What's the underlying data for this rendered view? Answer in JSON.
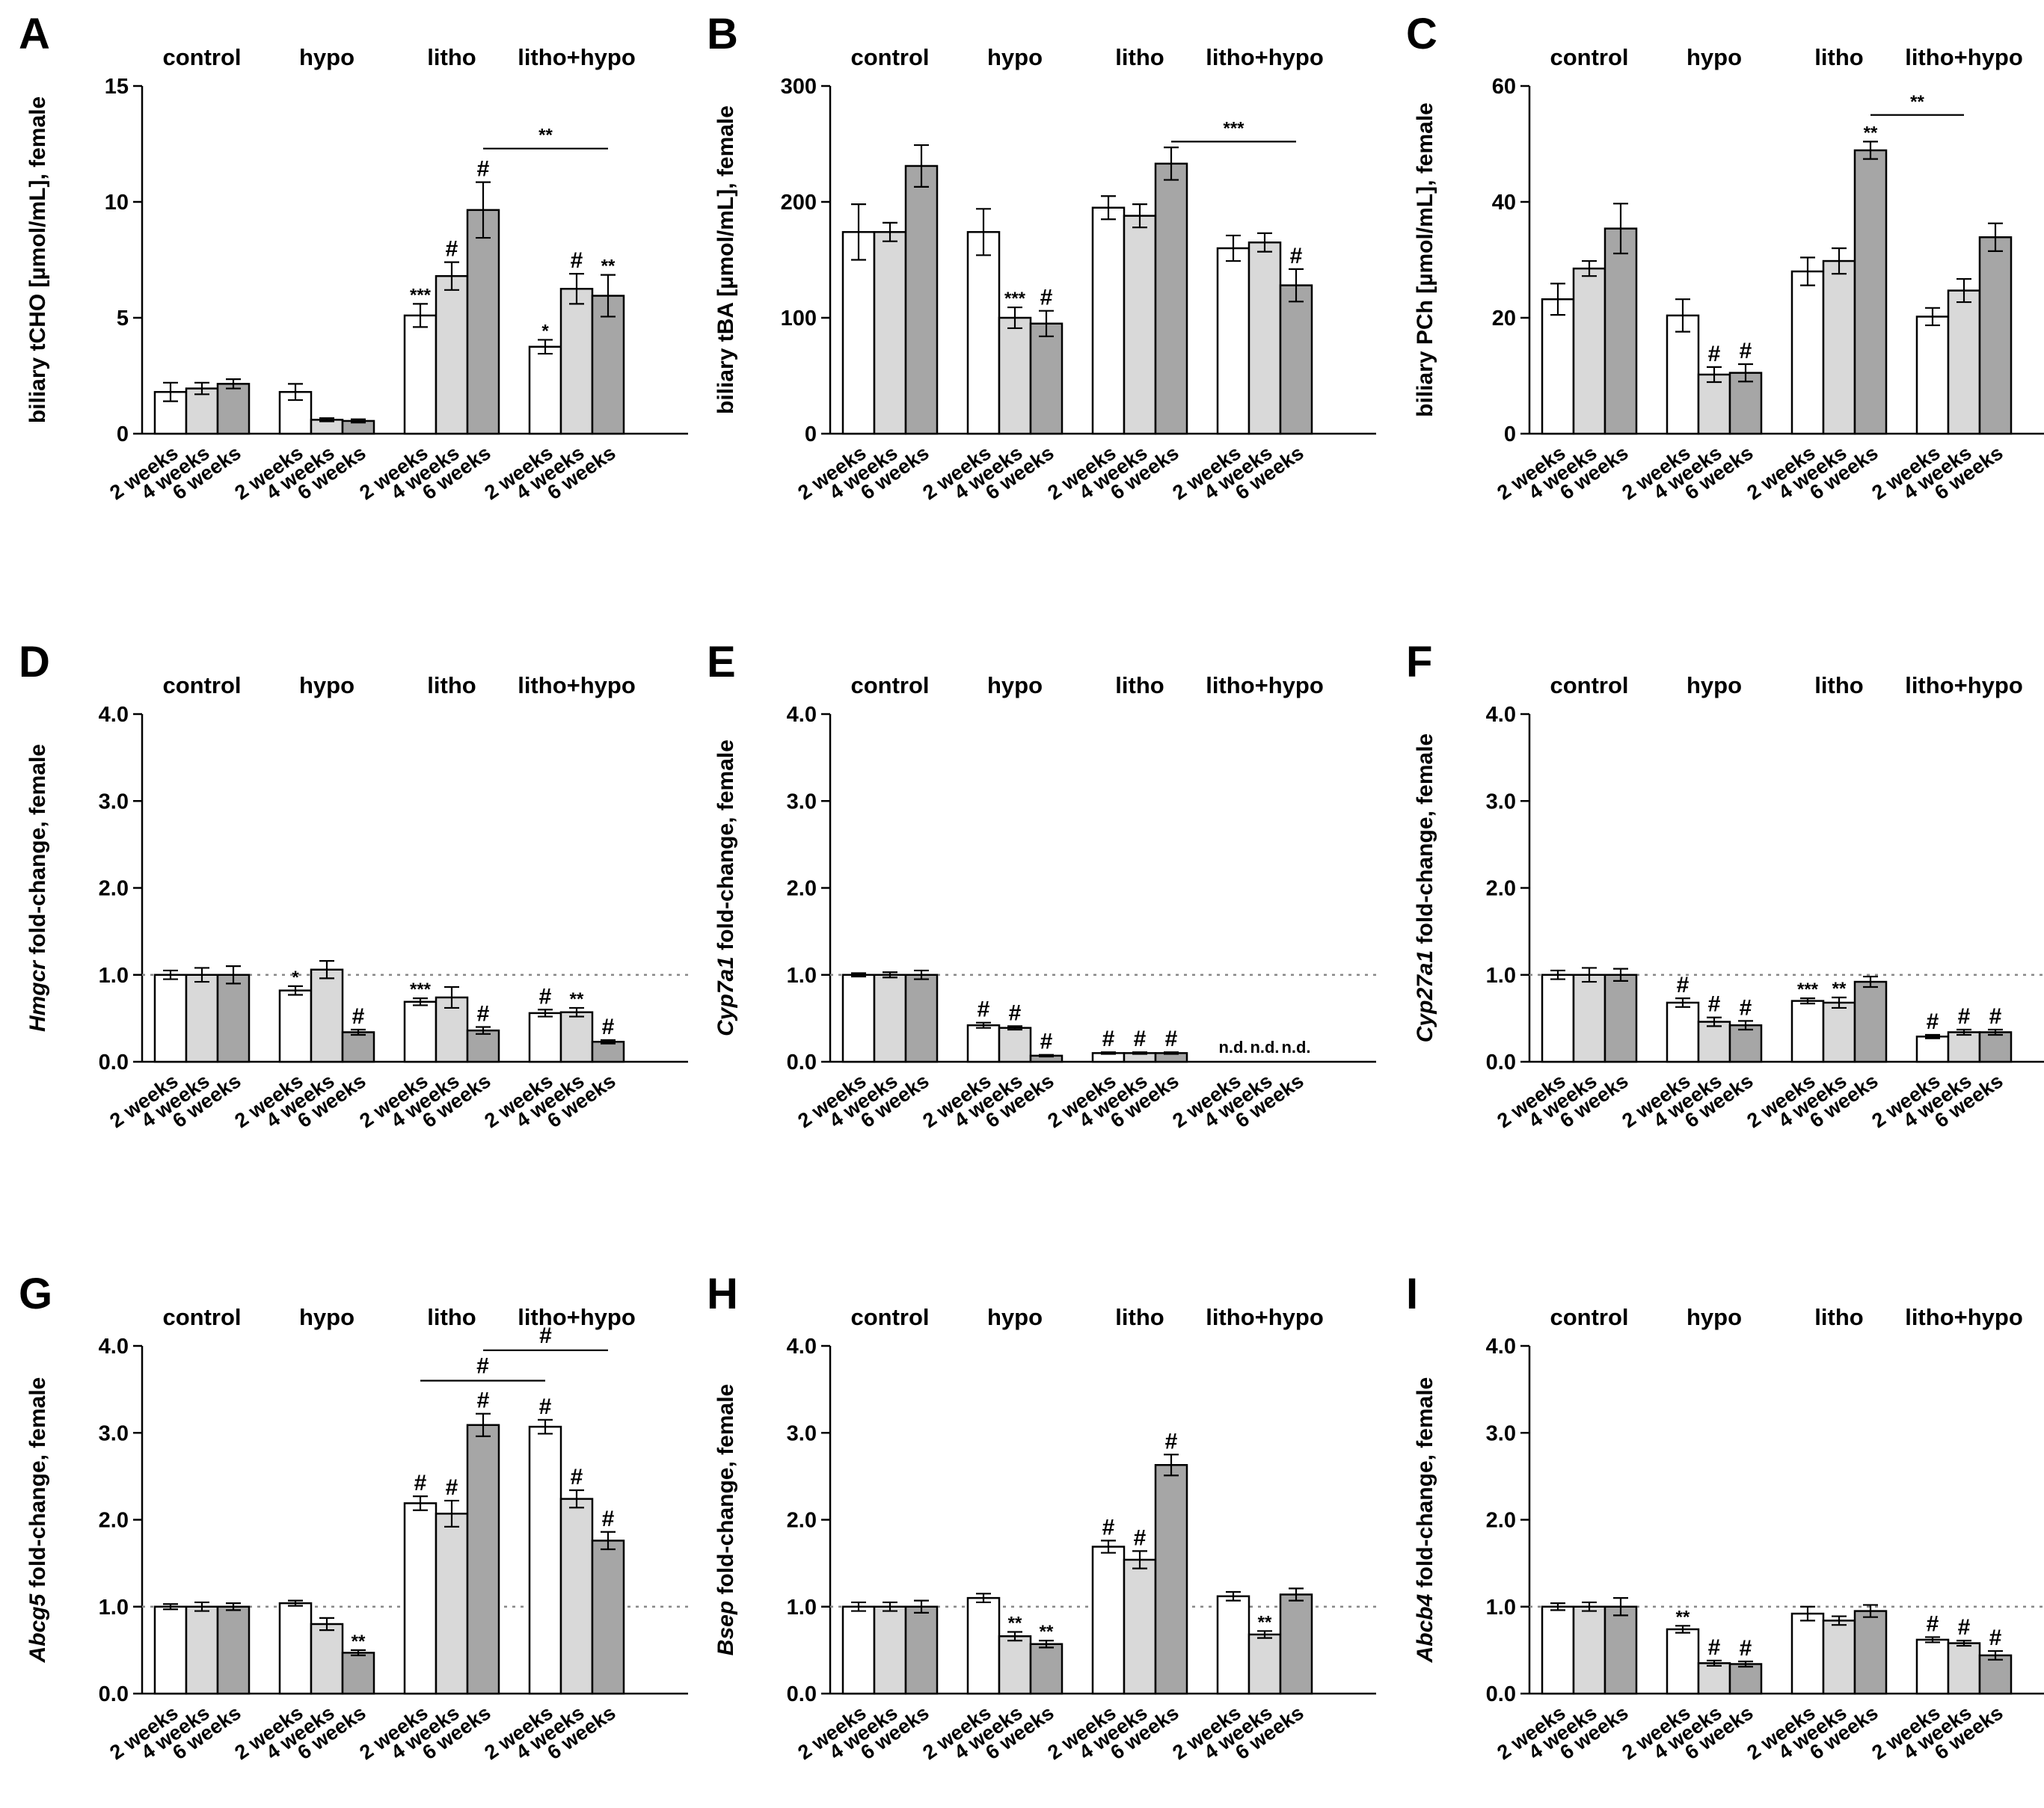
{
  "chart_data": [
    {
      "panel": "A",
      "type": "bar",
      "ylabel": "biliary tCHO [µmol/mL], female",
      "ylim": [
        0,
        15
      ],
      "yticks": [
        0,
        5,
        10,
        15
      ],
      "groups": [
        "control",
        "hypo",
        "litho",
        "litho+hypo"
      ],
      "categories": [
        "2 weeks",
        "4 weeks",
        "6 weeks"
      ],
      "colors": [
        "#ffffff",
        "#d9d9d9",
        "#a6a6a6"
      ],
      "values": [
        [
          1.8,
          1.95,
          2.15
        ],
        [
          1.8,
          0.6,
          0.55
        ],
        [
          5.1,
          6.8,
          9.65
        ],
        [
          3.75,
          6.25,
          5.95
        ]
      ],
      "errors": [
        [
          0.4,
          0.25,
          0.2
        ],
        [
          0.35,
          0.07,
          0.07
        ],
        [
          0.5,
          0.6,
          1.2
        ],
        [
          0.3,
          0.65,
          0.9
        ]
      ],
      "annotations": [
        [
          "",
          "",
          ""
        ],
        [
          "",
          "",
          ""
        ],
        [
          "***",
          "#",
          "#"
        ],
        [
          "*",
          "#",
          "**"
        ]
      ],
      "reference_line": null,
      "brackets": [
        {
          "from": [
            2,
            2
          ],
          "to": [
            3,
            2
          ],
          "y": 12.3,
          "label": "**"
        }
      ],
      "not_detected": [],
      "nd_label": ""
    },
    {
      "panel": "B",
      "type": "bar",
      "ylabel": "biliary tBA [µmol/mL], female",
      "ylim": [
        0,
        300
      ],
      "yticks": [
        0,
        100,
        200,
        300
      ],
      "groups": [
        "control",
        "hypo",
        "litho",
        "litho+hypo"
      ],
      "categories": [
        "2 weeks",
        "4 weeks",
        "6 weeks"
      ],
      "colors": [
        "#ffffff",
        "#d9d9d9",
        "#a6a6a6"
      ],
      "values": [
        [
          174,
          174,
          231
        ],
        [
          174,
          100,
          95
        ],
        [
          195,
          188,
          233
        ],
        [
          160,
          165,
          128
        ]
      ],
      "errors": [
        [
          24,
          8,
          18
        ],
        [
          20,
          9,
          11
        ],
        [
          10,
          10,
          14
        ],
        [
          11,
          8,
          14
        ]
      ],
      "annotations": [
        [
          "",
          "",
          ""
        ],
        [
          "",
          "***",
          "#"
        ],
        [
          "",
          "",
          ""
        ],
        [
          "",
          "",
          "#"
        ]
      ],
      "reference_line": null,
      "brackets": [
        {
          "from": [
            2,
            2
          ],
          "to": [
            3,
            2
          ],
          "y": 252,
          "label": "***"
        }
      ],
      "not_detected": [],
      "nd_label": ""
    },
    {
      "panel": "C",
      "type": "bar",
      "ylabel": "biliary PCh [µmol/mL], female",
      "ylim": [
        0,
        60
      ],
      "yticks": [
        0,
        20,
        40,
        60
      ],
      "groups": [
        "control",
        "hypo",
        "litho",
        "litho+hypo"
      ],
      "categories": [
        "2 weeks",
        "4 weeks",
        "6 weeks"
      ],
      "colors": [
        "#ffffff",
        "#d9d9d9",
        "#a6a6a6"
      ],
      "values": [
        [
          23.2,
          28.5,
          35.4
        ],
        [
          20.4,
          10.2,
          10.5
        ],
        [
          28.0,
          29.8,
          48.9
        ],
        [
          20.2,
          24.7,
          33.9
        ]
      ],
      "errors": [
        [
          2.7,
          1.3,
          4.3
        ],
        [
          2.8,
          1.3,
          1.5
        ],
        [
          2.4,
          2.2,
          1.5
        ],
        [
          1.5,
          2.0,
          2.4
        ]
      ],
      "annotations": [
        [
          "",
          "",
          ""
        ],
        [
          "",
          "#",
          "#"
        ],
        [
          "",
          "",
          "**"
        ],
        [
          "",
          "",
          ""
        ]
      ],
      "reference_line": null,
      "brackets": [
        {
          "from": [
            2,
            2
          ],
          "to": [
            3,
            1
          ],
          "y": 55,
          "label": "**"
        }
      ],
      "not_detected": [],
      "nd_label": ""
    },
    {
      "panel": "D",
      "type": "bar",
      "ylabel_italic": "Hmgcr",
      "ylabel": " fold-change, female",
      "ylim": [
        0,
        4
      ],
      "yticks": [
        0,
        1,
        2,
        3,
        4
      ],
      "tick_format": "0.0",
      "groups": [
        "control",
        "hypo",
        "litho",
        "litho+hypo"
      ],
      "categories": [
        "2 weeks",
        "4 weeks",
        "6 weeks"
      ],
      "colors": [
        "#ffffff",
        "#d9d9d9",
        "#a6a6a6"
      ],
      "values": [
        [
          1.0,
          1.0,
          1.0
        ],
        [
          0.82,
          1.06,
          0.34
        ],
        [
          0.69,
          0.74,
          0.36
        ],
        [
          0.56,
          0.57,
          0.23
        ]
      ],
      "errors": [
        [
          0.05,
          0.08,
          0.1
        ],
        [
          0.05,
          0.1,
          0.03
        ],
        [
          0.04,
          0.12,
          0.04
        ],
        [
          0.04,
          0.05,
          0.02
        ]
      ],
      "annotations": [
        [
          "",
          "",
          ""
        ],
        [
          "*",
          "",
          "#"
        ],
        [
          "***",
          "",
          "#"
        ],
        [
          "#",
          "**",
          "#"
        ]
      ],
      "reference_line": 1.0,
      "brackets": [],
      "not_detected": [],
      "nd_label": ""
    },
    {
      "panel": "E",
      "type": "bar",
      "ylabel_italic": "Cyp7a1",
      "ylabel": " fold-change, female",
      "ylim": [
        0,
        4
      ],
      "yticks": [
        0,
        1,
        2,
        3,
        4
      ],
      "tick_format": "0.0",
      "groups": [
        "control",
        "hypo",
        "litho",
        "litho+hypo"
      ],
      "categories": [
        "2 weeks",
        "4 weeks",
        "6 weeks"
      ],
      "colors": [
        "#ffffff",
        "#d9d9d9",
        "#a6a6a6"
      ],
      "values": [
        [
          1.0,
          1.0,
          1.0
        ],
        [
          0.42,
          0.39,
          0.07
        ],
        [
          0.1,
          0.1,
          0.1
        ],
        [
          0,
          0,
          0
        ]
      ],
      "errors": [
        [
          0.02,
          0.03,
          0.05
        ],
        [
          0.03,
          0.02,
          0.01
        ],
        [
          0.01,
          0.01,
          0.01
        ],
        [
          0,
          0,
          0
        ]
      ],
      "annotations": [
        [
          "",
          "",
          ""
        ],
        [
          "#",
          "#",
          "#"
        ],
        [
          "#",
          "#",
          "#"
        ],
        [
          "",
          "",
          ""
        ]
      ],
      "reference_line": 1.0,
      "brackets": [],
      "not_detected": [
        3
      ],
      "nd_label": "n.d."
    },
    {
      "panel": "F",
      "type": "bar",
      "ylabel_italic": "Cyp27a1",
      "ylabel": " fold-change, female",
      "ylim": [
        0,
        4
      ],
      "yticks": [
        0,
        1,
        2,
        3,
        4
      ],
      "tick_format": "0.0",
      "groups": [
        "control",
        "hypo",
        "litho",
        "litho+hypo"
      ],
      "categories": [
        "2 weeks",
        "4 weeks",
        "6 weeks"
      ],
      "colors": [
        "#ffffff",
        "#d9d9d9",
        "#a6a6a6"
      ],
      "values": [
        [
          1.0,
          1.0,
          1.0
        ],
        [
          0.68,
          0.46,
          0.42
        ],
        [
          0.7,
          0.68,
          0.92
        ],
        [
          0.29,
          0.34,
          0.34
        ]
      ],
      "errors": [
        [
          0.05,
          0.08,
          0.07
        ],
        [
          0.05,
          0.05,
          0.05
        ],
        [
          0.03,
          0.06,
          0.06
        ],
        [
          0.02,
          0.03,
          0.03
        ]
      ],
      "annotations": [
        [
          "",
          "",
          ""
        ],
        [
          "#",
          "#",
          "#"
        ],
        [
          "***",
          "**",
          ""
        ],
        [
          "#",
          "#",
          "#"
        ]
      ],
      "reference_line": 1.0,
      "brackets": [],
      "not_detected": [],
      "nd_label": ""
    },
    {
      "panel": "G",
      "type": "bar",
      "ylabel_italic": "Abcg5",
      "ylabel": " fold-change, female",
      "ylim": [
        0,
        4
      ],
      "yticks": [
        0,
        1,
        2,
        3,
        4
      ],
      "tick_format": "0.0",
      "groups": [
        "control",
        "hypo",
        "litho",
        "litho+hypo"
      ],
      "categories": [
        "2 weeks",
        "4 weeks",
        "6 weeks"
      ],
      "colors": [
        "#ffffff",
        "#d9d9d9",
        "#a6a6a6"
      ],
      "values": [
        [
          1.0,
          1.0,
          1.0
        ],
        [
          1.04,
          0.8,
          0.47
        ],
        [
          2.19,
          2.07,
          3.09
        ],
        [
          3.07,
          2.24,
          1.76
        ]
      ],
      "errors": [
        [
          0.03,
          0.05,
          0.04
        ],
        [
          0.03,
          0.07,
          0.03
        ],
        [
          0.08,
          0.15,
          0.13
        ],
        [
          0.08,
          0.1,
          0.1
        ]
      ],
      "annotations": [
        [
          "",
          "",
          ""
        ],
        [
          "",
          "",
          "**"
        ],
        [
          "#",
          "#",
          "#"
        ],
        [
          "#",
          "#",
          "#"
        ]
      ],
      "reference_line": 1.0,
      "brackets": [
        {
          "from": [
            2,
            0
          ],
          "to": [
            3,
            0
          ],
          "y": 3.6,
          "label": "#"
        },
        {
          "from": [
            2,
            2
          ],
          "to": [
            3,
            2
          ],
          "y": 3.95,
          "label": "#"
        }
      ],
      "not_detected": [],
      "nd_label": ""
    },
    {
      "panel": "H",
      "type": "bar",
      "ylabel_italic": "Bsep",
      "ylabel": " fold-change, female",
      "ylim": [
        0,
        4
      ],
      "yticks": [
        0,
        1,
        2,
        3,
        4
      ],
      "tick_format": "0.0",
      "groups": [
        "control",
        "hypo",
        "litho",
        "litho+hypo"
      ],
      "categories": [
        "2 weeks",
        "4 weeks",
        "6 weeks"
      ],
      "colors": [
        "#ffffff",
        "#d9d9d9",
        "#a6a6a6"
      ],
      "values": [
        [
          1.0,
          1.0,
          1.0
        ],
        [
          1.1,
          0.66,
          0.57
        ],
        [
          1.69,
          1.54,
          2.63
        ],
        [
          1.12,
          0.68,
          1.14
        ]
      ],
      "errors": [
        [
          0.05,
          0.05,
          0.07
        ],
        [
          0.05,
          0.05,
          0.04
        ],
        [
          0.07,
          0.1,
          0.12
        ],
        [
          0.05,
          0.04,
          0.07
        ]
      ],
      "annotations": [
        [
          "",
          "",
          ""
        ],
        [
          "",
          "**",
          "**"
        ],
        [
          "#",
          "#",
          "#"
        ],
        [
          "",
          "**",
          ""
        ]
      ],
      "reference_line": 1.0,
      "brackets": [],
      "not_detected": [],
      "nd_label": ""
    },
    {
      "panel": "I",
      "type": "bar",
      "ylabel_italic": "Abcb4",
      "ylabel": " fold-change, female",
      "ylim": [
        0,
        4
      ],
      "yticks": [
        0,
        1,
        2,
        3,
        4
      ],
      "tick_format": "0.0",
      "groups": [
        "control",
        "hypo",
        "litho",
        "litho+hypo"
      ],
      "categories": [
        "2 weeks",
        "4 weeks",
        "6 weeks"
      ],
      "colors": [
        "#ffffff",
        "#d9d9d9",
        "#a6a6a6"
      ],
      "values": [
        [
          1.0,
          1.0,
          1.0
        ],
        [
          0.74,
          0.35,
          0.34
        ],
        [
          0.92,
          0.84,
          0.95
        ],
        [
          0.62,
          0.58,
          0.44
        ]
      ],
      "errors": [
        [
          0.04,
          0.05,
          0.1
        ],
        [
          0.04,
          0.03,
          0.03
        ],
        [
          0.08,
          0.05,
          0.07
        ],
        [
          0.03,
          0.03,
          0.05
        ]
      ],
      "annotations": [
        [
          "",
          "",
          ""
        ],
        [
          "**",
          "#",
          "#"
        ],
        [
          "",
          "",
          ""
        ],
        [
          "#",
          "#",
          "#"
        ]
      ],
      "reference_line": 1.0,
      "brackets": [],
      "not_detected": [],
      "nd_label": ""
    }
  ]
}
